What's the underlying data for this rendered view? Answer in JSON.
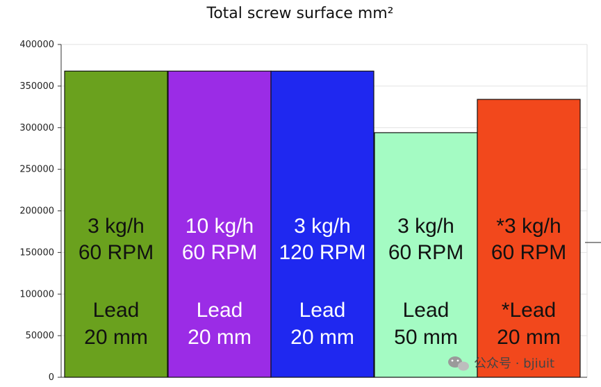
{
  "chart_data": {
    "type": "bar",
    "title": "Total screw surface mm²",
    "xlabel": "",
    "ylabel": "",
    "ylim": [
      0,
      400000
    ],
    "yticks": [
      0,
      50000,
      100000,
      150000,
      200000,
      250000,
      300000,
      350000,
      400000
    ],
    "ytick_labels": [
      "0",
      "50000",
      "100000",
      "150000",
      "200000",
      "250000",
      "300000",
      "350000",
      "400000"
    ],
    "grid": true,
    "bars": [
      {
        "value": 368000,
        "color": "#6aa11e",
        "text_color": "#111111",
        "label_top": [
          "3 kg/h",
          "60 RPM"
        ],
        "label_bottom": [
          "Lead",
          "20 mm"
        ]
      },
      {
        "value": 368000,
        "color": "#9b2ce6",
        "text_color": "#ffffff",
        "label_top": [
          "10 kg/h",
          "60 RPM"
        ],
        "label_bottom": [
          "Lead",
          "20 mm"
        ]
      },
      {
        "value": 368000,
        "color": "#1f28f0",
        "text_color": "#ffffff",
        "label_top": [
          "3 kg/h",
          "120 RPM"
        ],
        "label_bottom": [
          "Lead",
          "20 mm"
        ]
      },
      {
        "value": 294000,
        "color": "#a4fbc3",
        "text_color": "#111111",
        "label_top": [
          "3 kg/h",
          "60 RPM"
        ],
        "label_bottom": [
          "Lead",
          "50 mm"
        ]
      },
      {
        "value": 334000,
        "color": "#f2481c",
        "text_color": "#111111",
        "label_top": [
          "*3 kg/h",
          "60 RPM"
        ],
        "label_bottom": [
          "*Lead",
          "20 mm"
        ]
      }
    ]
  },
  "watermark": {
    "text": "公众号 · bjiuit",
    "icon": "wechat-icon"
  }
}
